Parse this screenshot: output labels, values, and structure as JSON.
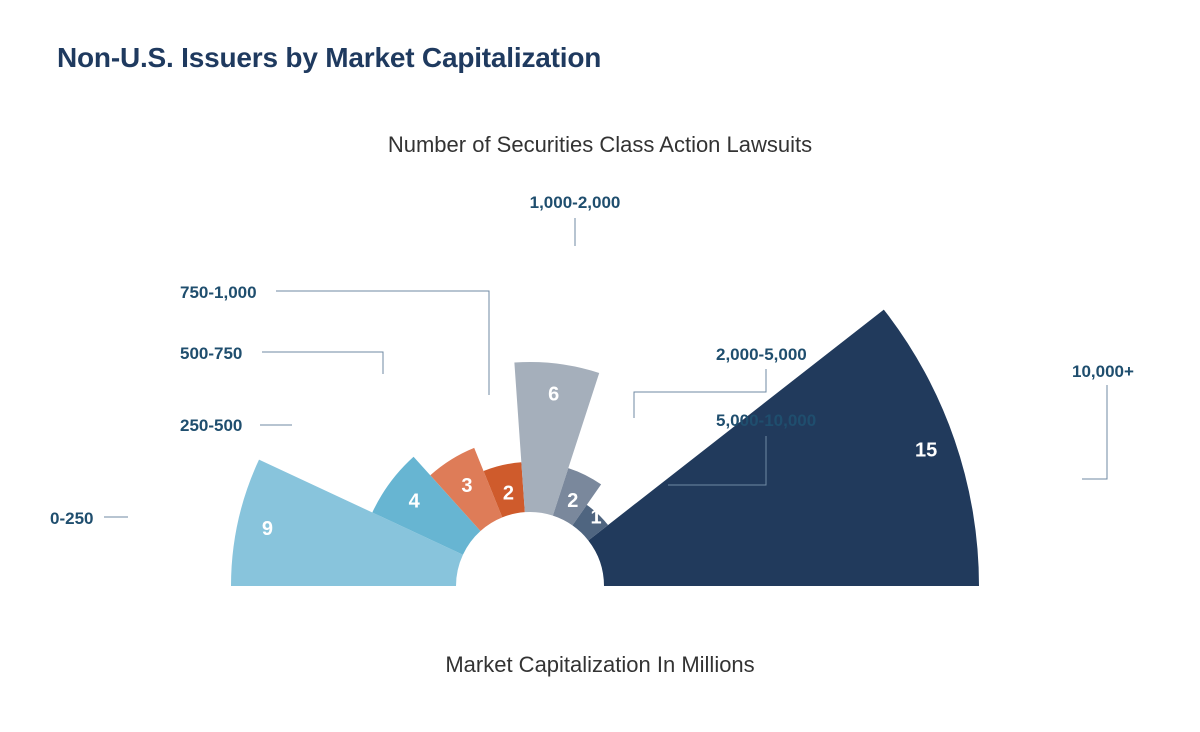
{
  "title": "Non-U.S. Issuers by Market Capitalization",
  "chart_data": {
    "type": "polar-bar",
    "title": "Non-U.S. Issuers by Market Capitalization",
    "subtitle": "Number of Securities Class Action Lawsuits",
    "xlabel": "Market Capitalization In Millions",
    "ylabel": "Number of Securities Class Action Lawsuits",
    "categories": [
      "0-250",
      "250-500",
      "500-750",
      "750-1,000",
      "1,000-2,000",
      "2,000-5,000",
      "5,000-10,000",
      "10,000+"
    ],
    "values": [
      9,
      4,
      3,
      2,
      6,
      2,
      1,
      15
    ],
    "colors": [
      "#88c4dc",
      "#67b5d2",
      "#de7c58",
      "#cf5b2c",
      "#a5afbb",
      "#7a889c",
      "#4f6580",
      "#213a5c"
    ],
    "legend": "none",
    "grid": false
  }
}
